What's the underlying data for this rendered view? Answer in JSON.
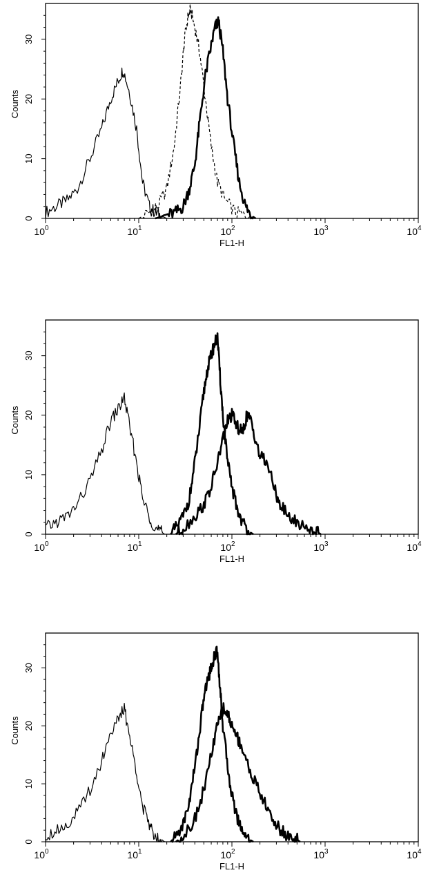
{
  "chart_data": [
    {
      "type": "line",
      "title": "",
      "xlabel": "FL1-H",
      "ylabel": "Counts",
      "x_scale": "log",
      "xlim": [
        1,
        10000
      ],
      "ylim": [
        0,
        36
      ],
      "x_ticks": [
        {
          "base": "10",
          "exp": "0"
        },
        {
          "base": "10",
          "exp": "1"
        },
        {
          "base": "10",
          "exp": "2"
        },
        {
          "base": "10",
          "exp": "3"
        },
        {
          "base": "10",
          "exp": "4"
        }
      ],
      "y_ticks": [
        "0",
        "10",
        "20",
        "30"
      ],
      "y_tick_values": [
        0,
        10,
        20,
        30
      ],
      "series": [
        {
          "style": "thin",
          "x": [
            1,
            1.3,
            1.7,
            2.2,
            3,
            4,
            5,
            6,
            6.8,
            8,
            9.5,
            11,
            13,
            15,
            17,
            20
          ],
          "y": [
            1,
            2,
            3,
            5,
            10,
            15,
            20,
            23,
            25,
            21,
            15,
            6,
            2,
            1,
            0.5,
            0
          ]
        },
        {
          "style": "dashed",
          "x": [
            10,
            13,
            16,
            20,
            24,
            28,
            31,
            34,
            36,
            40,
            45,
            52,
            60,
            70,
            85,
            110,
            140,
            170
          ],
          "y": [
            0,
            1,
            2,
            5,
            12,
            22,
            30,
            34,
            35,
            32,
            28,
            20,
            12,
            6,
            3,
            1,
            0.5,
            0
          ]
        },
        {
          "style": "thick",
          "x": [
            15,
            20,
            25,
            30,
            35,
            40,
            45,
            52,
            60,
            66,
            72,
            80,
            90,
            105,
            120,
            140,
            160,
            180
          ],
          "y": [
            0,
            0.5,
            1,
            2,
            5,
            9,
            16,
            24,
            29,
            32,
            33,
            28,
            20,
            12,
            6,
            2,
            0.5,
            0
          ]
        }
      ]
    },
    {
      "type": "line",
      "title": "",
      "xlabel": "FL1-H",
      "ylabel": "Counts",
      "x_scale": "log",
      "xlim": [
        1,
        10000
      ],
      "ylim": [
        0,
        36
      ],
      "x_ticks": [
        {
          "base": "10",
          "exp": "0"
        },
        {
          "base": "10",
          "exp": "1"
        },
        {
          "base": "10",
          "exp": "2"
        },
        {
          "base": "10",
          "exp": "3"
        },
        {
          "base": "10",
          "exp": "4"
        }
      ],
      "y_ticks": [
        "0",
        "10",
        "20",
        "30"
      ],
      "y_tick_values": [
        0,
        10,
        20,
        30
      ],
      "series": [
        {
          "style": "thin",
          "x": [
            1,
            1.3,
            1.7,
            2.2,
            3,
            4,
            5,
            6,
            7,
            8,
            9.5,
            11,
            13,
            15,
            17,
            19
          ],
          "y": [
            1,
            2,
            3,
            5,
            9,
            14,
            19,
            21,
            23,
            18,
            12,
            6,
            3,
            1,
            0.5,
            0
          ]
        },
        {
          "style": "thick",
          "x": [
            22,
            25,
            30,
            35,
            40,
            45,
            50,
            55,
            60,
            65,
            70,
            75,
            80,
            90,
            100,
            115,
            130,
            150,
            170
          ],
          "y": [
            0,
            1,
            3,
            6,
            12,
            18,
            24,
            28,
            30,
            32,
            33,
            26,
            20,
            12,
            8,
            4,
            2,
            0.5,
            0
          ]
        },
        {
          "style": "thick",
          "x": [
            25,
            30,
            40,
            50,
            60,
            70,
            80,
            90,
            100,
            115,
            130,
            145,
            160,
            180,
            200,
            240,
            280,
            330,
            400,
            500,
            650,
            800,
            900
          ],
          "y": [
            0,
            1,
            3,
            5,
            8,
            12,
            16,
            19,
            20,
            18,
            17,
            20,
            19,
            16,
            13,
            12,
            8,
            5,
            3,
            2,
            1,
            0.5,
            0
          ]
        }
      ]
    },
    {
      "type": "line",
      "title": "",
      "xlabel": "FL1-H",
      "ylabel": "Counts",
      "x_scale": "log",
      "xlim": [
        1,
        10000
      ],
      "ylim": [
        0,
        36
      ],
      "x_ticks": [
        {
          "base": "10",
          "exp": "0"
        },
        {
          "base": "10",
          "exp": "1"
        },
        {
          "base": "10",
          "exp": "2"
        },
        {
          "base": "10",
          "exp": "3"
        },
        {
          "base": "10",
          "exp": "4"
        }
      ],
      "y_ticks": [
        "0",
        "10",
        "20",
        "30"
      ],
      "y_tick_values": [
        0,
        10,
        20,
        30
      ],
      "series": [
        {
          "style": "thin",
          "x": [
            1,
            1.3,
            1.7,
            2.2,
            3,
            4,
            5,
            6,
            7,
            8,
            9.5,
            11,
            13,
            15,
            17,
            19
          ],
          "y": [
            1,
            2,
            3,
            5,
            9,
            14,
            19,
            21,
            23,
            18,
            12,
            6,
            3,
            1,
            0.5,
            0
          ]
        },
        {
          "style": "thick",
          "x": [
            22,
            25,
            30,
            35,
            40,
            45,
            50,
            55,
            60,
            65,
            70,
            75,
            80,
            90,
            100,
            115,
            130,
            150,
            170
          ],
          "y": [
            0,
            1,
            3,
            7,
            13,
            19,
            25,
            28,
            30,
            32,
            33,
            26,
            20,
            13,
            8,
            4,
            2,
            0.5,
            0
          ]
        },
        {
          "style": "thick",
          "x": [
            25,
            30,
            40,
            50,
            60,
            70,
            80,
            90,
            100,
            115,
            130,
            150,
            180,
            220,
            270,
            330,
            400,
            480,
            540
          ],
          "y": [
            0,
            1,
            4,
            9,
            15,
            20,
            23,
            22,
            20,
            18,
            16,
            13,
            10,
            7,
            4,
            2,
            1,
            0.5,
            0
          ]
        }
      ]
    }
  ]
}
